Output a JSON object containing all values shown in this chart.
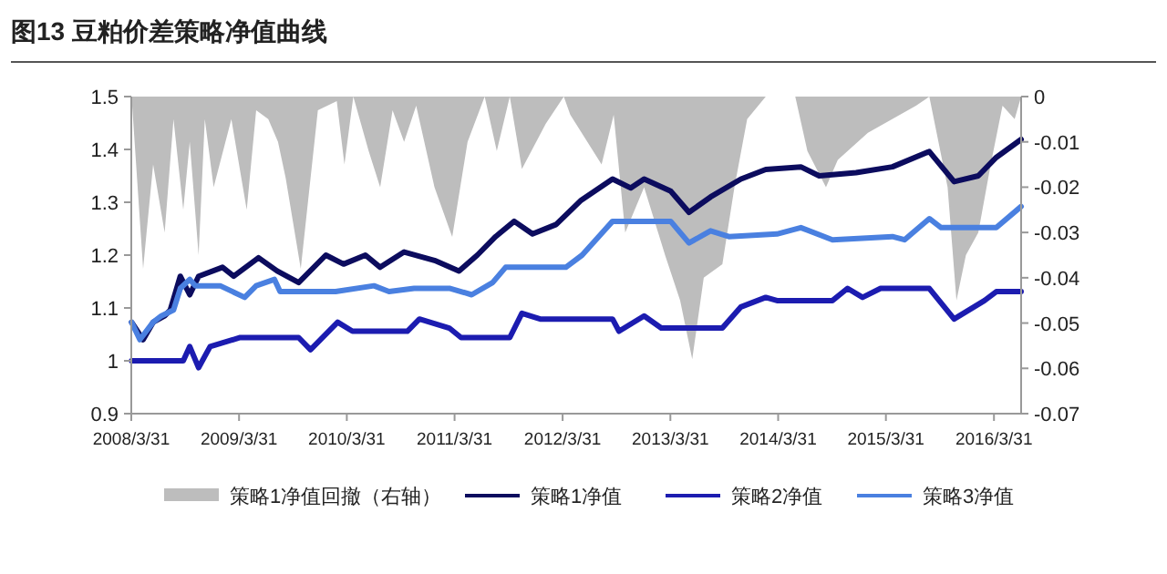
{
  "chart_data": {
    "type": "line",
    "title": "图13 豆粕价差策略净值曲线",
    "xlim": [
      "2008-03-31",
      "2016-07-01"
    ],
    "xticks": [
      {
        "value": "2008-03-31",
        "label": "2008/3/31"
      },
      {
        "value": "2009-03-31",
        "label": "2009/3/31"
      },
      {
        "value": "2010-03-31",
        "label": "2010/3/31"
      },
      {
        "value": "2011-03-31",
        "label": "2011/3/31"
      },
      {
        "value": "2012-03-31",
        "label": "2012/3/31"
      },
      {
        "value": "2013-03-31",
        "label": "2013/3/31"
      },
      {
        "value": "2014-03-31",
        "label": "2014/3/31"
      },
      {
        "value": "2015-03-31",
        "label": "2015/3/31"
      },
      {
        "value": "2016-03-31",
        "label": "2016/3/31"
      }
    ],
    "ylim": [
      0.9,
      1.5
    ],
    "yticks": [
      0.9,
      1,
      1.1,
      1.2,
      1.3,
      1.4,
      1.5
    ],
    "y2lim": [
      -0.07,
      0
    ],
    "y2ticks": [
      -0.07,
      -0.06,
      -0.05,
      -0.04,
      -0.03,
      -0.02,
      -0.01,
      0
    ],
    "legend": "bottom",
    "grid": false,
    "marker": "none",
    "line_style": "solid",
    "series": [
      {
        "name": "策略1净值回撤（右轴）",
        "type": "area",
        "axis": "y2",
        "color": "#bdbdbd",
        "x": [
          "2008-04-01",
          "2008-05-10",
          "2008-06-13",
          "2008-07-22",
          "2008-08-21",
          "2008-09-23",
          "2008-10-15",
          "2008-11-14",
          "2008-12-05",
          "2009-01-04",
          "2009-03-05",
          "2009-04-26",
          "2009-05-28",
          "2009-07-08",
          "2009-08-10",
          "2009-09-05",
          "2009-10-26",
          "2009-12-23",
          "2010-02-25",
          "2010-03-23",
          "2010-04-22",
          "2010-06-13",
          "2010-07-22",
          "2010-09-02",
          "2010-10-11",
          "2010-11-21",
          "2011-01-22",
          "2011-03-23",
          "2011-05-14",
          "2011-07-11",
          "2011-08-21",
          "2011-10-04",
          "2011-11-14",
          "2012-02-03",
          "2012-04-04",
          "2012-04-26",
          "2012-08-10",
          "2012-09-20",
          "2012-10-29",
          "2013-01-01",
          "2013-03-13",
          "2013-05-03",
          "2013-06-13",
          "2013-07-22",
          "2013-09-23",
          "2013-11-03",
          "2013-12-16",
          "2014-02-17",
          "2014-05-28",
          "2014-07-08",
          "2014-09-09",
          "2014-10-19",
          "2015-01-29",
          "2015-07-11",
          "2015-08-25",
          "2015-10-26",
          "2015-11-25",
          "2015-12-27",
          "2016-02-07",
          "2016-03-20",
          "2016-04-29",
          "2016-06-09",
          "2016-07-01"
        ],
        "values": [
          0,
          -0.038,
          -0.015,
          -0.03,
          -0.005,
          -0.025,
          -0.01,
          -0.035,
          -0.005,
          -0.02,
          -0.005,
          -0.025,
          -0.003,
          -0.005,
          -0.01,
          -0.018,
          -0.038,
          -0.003,
          -0.001,
          -0.015,
          0,
          -0.012,
          -0.02,
          -0.003,
          -0.01,
          -0.002,
          -0.02,
          -0.031,
          -0.01,
          0,
          -0.012,
          0,
          -0.016,
          -0.006,
          0,
          -0.004,
          -0.015,
          -0.004,
          -0.03,
          -0.02,
          -0.035,
          -0.045,
          -0.058,
          -0.04,
          -0.037,
          -0.02,
          -0.005,
          0,
          0,
          -0.012,
          -0.02,
          -0.014,
          -0.008,
          -0.002,
          0,
          -0.02,
          -0.045,
          -0.035,
          -0.03,
          -0.015,
          -0.002,
          -0.005,
          0
        ]
      },
      {
        "name": "策略1净值",
        "color": "#0c0c5e",
        "x": [
          "2008-04-01",
          "2008-05-10",
          "2008-06-13",
          "2008-07-22",
          "2008-08-10",
          "2008-09-13",
          "2008-10-15",
          "2008-11-14",
          "2009-02-03",
          "2009-03-13",
          "2009-06-05",
          "2009-08-07",
          "2009-10-19",
          "2010-01-19",
          "2010-03-20",
          "2010-06-02",
          "2010-07-22",
          "2010-10-11",
          "2011-01-22",
          "2011-04-15",
          "2011-06-16",
          "2011-08-17",
          "2011-10-19",
          "2011-12-20",
          "2012-03-09",
          "2012-06-02",
          "2012-09-16",
          "2012-11-17",
          "2013-01-01",
          "2013-04-01",
          "2013-06-02",
          "2013-08-14",
          "2013-11-25",
          "2014-02-17",
          "2014-06-16",
          "2014-08-17",
          "2014-12-20",
          "2015-04-22",
          "2015-08-25",
          "2015-11-17",
          "2016-02-07",
          "2016-04-08",
          "2016-07-01"
        ],
        "values": [
          1.073,
          1.04,
          1.073,
          1.085,
          1.096,
          1.16,
          1.125,
          1.16,
          1.177,
          1.16,
          1.195,
          1.17,
          1.148,
          1.2,
          1.183,
          1.2,
          1.177,
          1.206,
          1.19,
          1.17,
          1.2,
          1.235,
          1.264,
          1.24,
          1.258,
          1.304,
          1.344,
          1.327,
          1.344,
          1.321,
          1.281,
          1.31,
          1.344,
          1.362,
          1.367,
          1.35,
          1.356,
          1.367,
          1.396,
          1.339,
          1.35,
          1.385,
          1.419
        ]
      },
      {
        "name": "策略2净值",
        "color": "#1c1cb0",
        "x": [
          "2008-04-01",
          "2008-09-23",
          "2008-10-15",
          "2008-11-14",
          "2008-12-23",
          "2009-04-04",
          "2009-10-19",
          "2009-11-28",
          "2010-02-28",
          "2010-04-19",
          "2010-10-22",
          "2010-12-02",
          "2011-03-13",
          "2011-04-22",
          "2011-10-04",
          "2011-11-14",
          "2012-01-15",
          "2012-09-16",
          "2012-10-08",
          "2013-01-01",
          "2013-02-28",
          "2013-09-23",
          "2013-11-25",
          "2014-02-17",
          "2014-03-27",
          "2014-10-01",
          "2014-11-21",
          "2015-01-11",
          "2015-03-13",
          "2015-08-25",
          "2015-11-17",
          "2016-02-28",
          "2016-04-08",
          "2016-07-01"
        ],
        "values": [
          1.0,
          1.0,
          1.027,
          0.987,
          1.027,
          1.044,
          1.044,
          1.021,
          1.073,
          1.056,
          1.056,
          1.079,
          1.062,
          1.044,
          1.044,
          1.09,
          1.079,
          1.079,
          1.056,
          1.085,
          1.062,
          1.062,
          1.102,
          1.12,
          1.114,
          1.114,
          1.137,
          1.12,
          1.137,
          1.137,
          1.079,
          1.114,
          1.131,
          1.131
        ]
      },
      {
        "name": "策略3净值",
        "color": "#4a80e0",
        "x": [
          "2008-04-01",
          "2008-04-29",
          "2008-06-13",
          "2008-07-11",
          "2008-08-21",
          "2008-09-13",
          "2008-10-15",
          "2008-11-03",
          "2009-01-26",
          "2009-04-19",
          "2009-05-28",
          "2009-07-29",
          "2009-08-17",
          "2010-02-21",
          "2010-07-01",
          "2010-08-21",
          "2010-11-14",
          "2011-03-16",
          "2011-05-28",
          "2011-08-07",
          "2011-09-20",
          "2012-04-11",
          "2012-06-05",
          "2012-09-16",
          "2013-04-01",
          "2013-06-02",
          "2013-08-14",
          "2013-10-15",
          "2014-03-27",
          "2014-06-16",
          "2014-10-01",
          "2015-04-22",
          "2015-06-02",
          "2015-08-25",
          "2015-10-04",
          "2016-04-08",
          "2016-07-01"
        ],
        "values": [
          1.073,
          1.04,
          1.073,
          1.085,
          1.096,
          1.137,
          1.154,
          1.142,
          1.142,
          1.12,
          1.142,
          1.154,
          1.131,
          1.131,
          1.142,
          1.131,
          1.137,
          1.137,
          1.125,
          1.148,
          1.177,
          1.177,
          1.2,
          1.264,
          1.264,
          1.223,
          1.246,
          1.235,
          1.24,
          1.252,
          1.229,
          1.235,
          1.229,
          1.269,
          1.252,
          1.252,
          1.292
        ]
      }
    ]
  }
}
